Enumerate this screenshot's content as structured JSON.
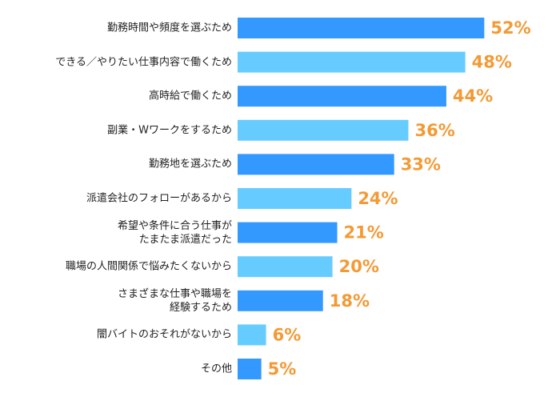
{
  "chart_data": {
    "type": "bar",
    "orientation": "horizontal",
    "categories": [
      "勤務時間や頻度を選ぶため",
      "できる／やりたい仕事内容で働くため",
      "高時給で働くため",
      "副業・Wワークをするため",
      "勤務地を選ぶため",
      "派遣会社のフォローがあるから",
      "希望や条件に合う仕事が\nたまたま派遣だった",
      "職場の人間関係で悩みたくないから",
      "さまざまな仕事や職場を\n経験するため",
      "闇バイトのおそれがないから",
      "その他"
    ],
    "values": [
      52,
      48,
      44,
      36,
      33,
      24,
      21,
      20,
      18,
      6,
      5
    ],
    "value_labels": [
      "52%",
      "48%",
      "44%",
      "36%",
      "33%",
      "24%",
      "21%",
      "20%",
      "18%",
      "6%",
      "5%"
    ],
    "colors": [
      "#3399ff",
      "#66ccff"
    ],
    "value_label_color": "#f39a35"
  }
}
